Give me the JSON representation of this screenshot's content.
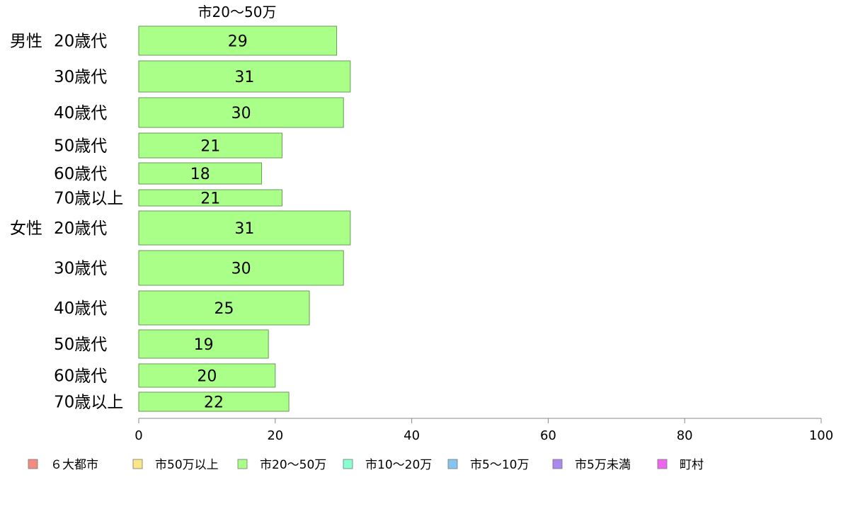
{
  "chart_data": {
    "type": "bar",
    "orientation": "horizontal",
    "title": "市20～50万",
    "groups": [
      {
        "label": "男性",
        "categories": [
          "20歳代",
          "30歳代",
          "40歳代",
          "50歳代",
          "60歳代",
          "70歳以上"
        ],
        "values": [
          29,
          31,
          30,
          21,
          18,
          21
        ]
      },
      {
        "label": "女性",
        "categories": [
          "20歳代",
          "30歳代",
          "40歳代",
          "50歳代",
          "60歳代",
          "70歳以上"
        ],
        "values": [
          31,
          30,
          25,
          19,
          20,
          22
        ]
      }
    ],
    "xlim": [
      0,
      100
    ],
    "x_ticks": [
      "0",
      "20",
      "40",
      "60",
      "80",
      "100"
    ],
    "grid": false,
    "legend_position": "bottom",
    "legend": [
      {
        "label": "６大都市",
        "color": "#f28b82"
      },
      {
        "label": "市50万以上",
        "color": "#fde68a"
      },
      {
        "label": "市20～50万",
        "color": "#aaff88"
      },
      {
        "label": "市10～20万",
        "color": "#88ffcc"
      },
      {
        "label": "市5～10万",
        "color": "#88c4f2"
      },
      {
        "label": "市5万未満",
        "color": "#aa88ee"
      },
      {
        "label": "町村",
        "color": "#ee66ee"
      }
    ],
    "bar_color": "#aaff88",
    "bar_stroke": "#6a9a5a"
  }
}
